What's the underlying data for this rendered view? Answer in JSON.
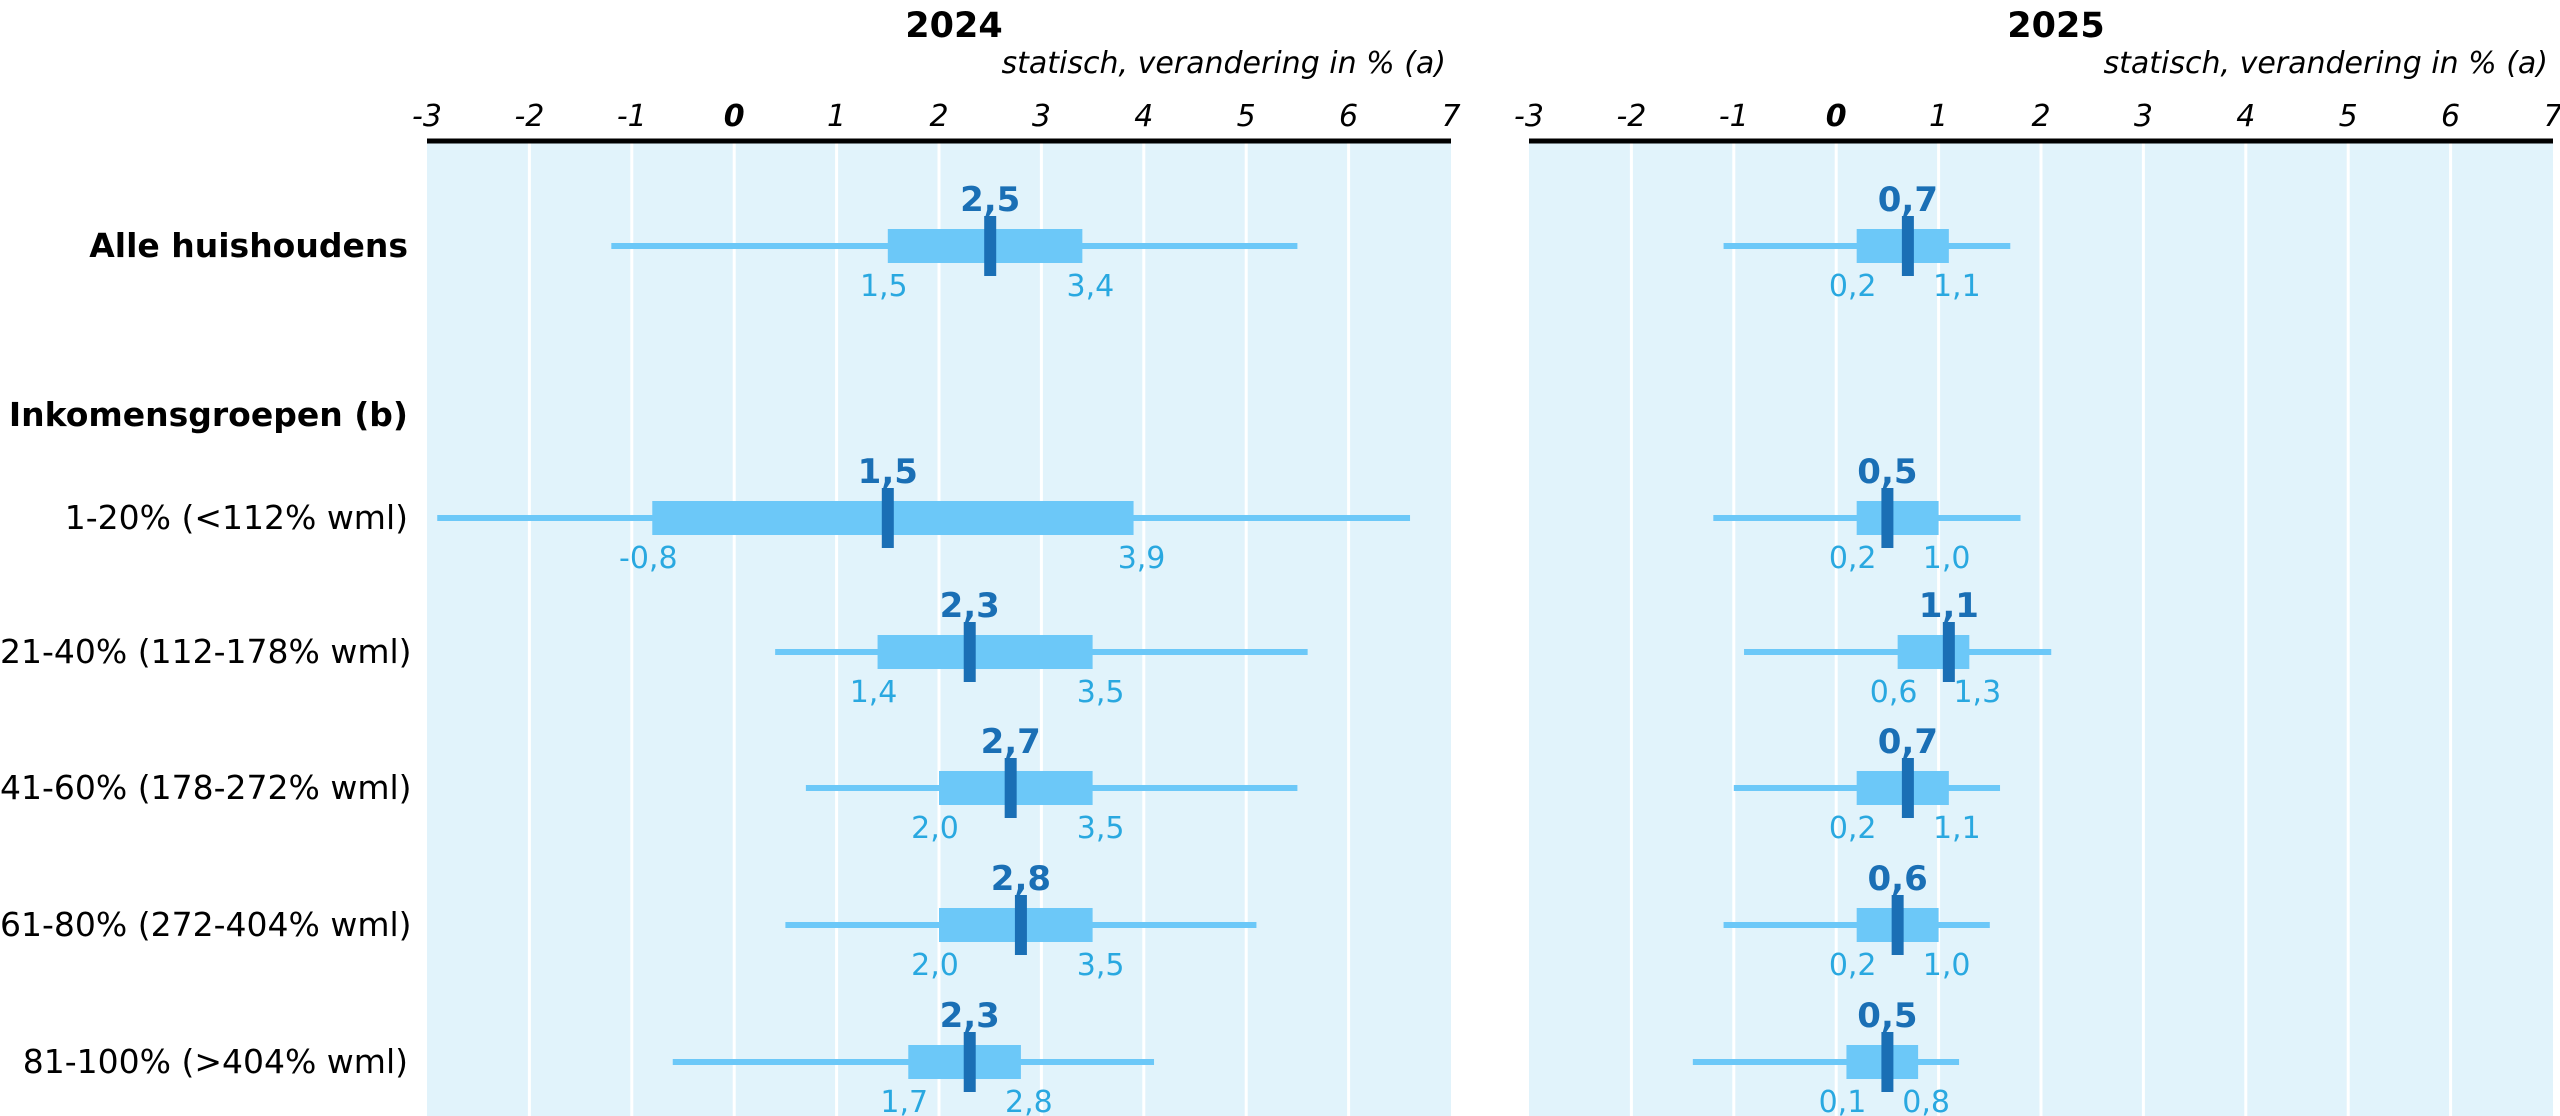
{
  "chart_data": {
    "type": "box",
    "row_labels": [
      {
        "label": "Alle huishoudens",
        "bold": true
      },
      {
        "label": "Inkomensgroepen (b)",
        "bold": true
      },
      {
        "label": "1-20% (<112% wml)",
        "bold": false
      },
      {
        "label": "21-40% (112-178% wml)",
        "bold": false
      },
      {
        "label": "41-60% (178-272% wml)",
        "bold": false
      },
      {
        "label": "61-80% (272-404% wml)",
        "bold": false
      },
      {
        "label": "81-100% (>404% wml)",
        "bold": false
      }
    ],
    "panels": [
      {
        "title": "2024",
        "subtitle": "statisch, verandering in % (a)",
        "xlim": [
          -3,
          7
        ],
        "ticks": [
          {
            "value": -3,
            "label": "-3"
          },
          {
            "value": -2,
            "label": "-2"
          },
          {
            "value": -1,
            "label": "-1"
          },
          {
            "value": 0,
            "label": "0"
          },
          {
            "value": 1,
            "label": "1"
          },
          {
            "value": 2,
            "label": "2"
          },
          {
            "value": 3,
            "label": "3"
          },
          {
            "value": 4,
            "label": "4"
          },
          {
            "value": 5,
            "label": "5"
          },
          {
            "value": 6,
            "label": "6"
          },
          {
            "value": 7,
            "label": "7"
          }
        ],
        "rows": [
          {
            "row": 0,
            "whisker_low": -1.2,
            "whisker_high": 5.5,
            "q1": 1.5,
            "q3": 3.4,
            "median": 2.5,
            "q1_label": "1,5",
            "q3_label": "3,4",
            "median_label": "2,5"
          },
          {
            "row": 2,
            "whisker_low": -2.9,
            "whisker_high": 6.6,
            "q1": -0.8,
            "q3": 3.9,
            "median": 1.5,
            "q1_label": "-0,8",
            "q3_label": "3,9",
            "median_label": "1,5"
          },
          {
            "row": 3,
            "whisker_low": 0.4,
            "whisker_high": 5.6,
            "q1": 1.4,
            "q3": 3.5,
            "median": 2.3,
            "q1_label": "1,4",
            "q3_label": "3,5",
            "median_label": "2,3"
          },
          {
            "row": 4,
            "whisker_low": 0.7,
            "whisker_high": 5.5,
            "q1": 2.0,
            "q3": 3.5,
            "median": 2.7,
            "q1_label": "2,0",
            "q3_label": "3,5",
            "median_label": "2,7"
          },
          {
            "row": 5,
            "whisker_low": 0.5,
            "whisker_high": 5.1,
            "q1": 2.0,
            "q3": 3.5,
            "median": 2.8,
            "q1_label": "2,0",
            "q3_label": "3,5",
            "median_label": "2,8"
          },
          {
            "row": 6,
            "whisker_low": -0.6,
            "whisker_high": 4.1,
            "q1": 1.7,
            "q3": 2.8,
            "median": 2.3,
            "q1_label": "1,7",
            "q3_label": "2,8",
            "median_label": "2,3"
          }
        ]
      },
      {
        "title": "2025",
        "subtitle": "statisch, verandering in % (a)",
        "xlim": [
          -3,
          7
        ],
        "ticks": [
          {
            "value": -3,
            "label": "-3"
          },
          {
            "value": -2,
            "label": "-2"
          },
          {
            "value": -1,
            "label": "-1"
          },
          {
            "value": 0,
            "label": "0"
          },
          {
            "value": 1,
            "label": "1"
          },
          {
            "value": 2,
            "label": "2"
          },
          {
            "value": 3,
            "label": "3"
          },
          {
            "value": 4,
            "label": "4"
          },
          {
            "value": 5,
            "label": "5"
          },
          {
            "value": 6,
            "label": "6"
          },
          {
            "value": 7,
            "label": "7"
          }
        ],
        "rows": [
          {
            "row": 0,
            "whisker_low": -1.1,
            "whisker_high": 1.7,
            "q1": 0.2,
            "q3": 1.1,
            "median": 0.7,
            "q1_label": "0,2",
            "q3_label": "1,1",
            "median_label": "0,7"
          },
          {
            "row": 2,
            "whisker_low": -1.2,
            "whisker_high": 1.8,
            "q1": 0.2,
            "q3": 1.0,
            "median": 0.5,
            "q1_label": "0,2",
            "q3_label": "1,0",
            "median_label": "0,5"
          },
          {
            "row": 3,
            "whisker_low": -0.9,
            "whisker_high": 2.1,
            "q1": 0.6,
            "q3": 1.3,
            "median": 1.1,
            "q1_label": "0,6",
            "q3_label": "1,3",
            "median_label": "1,1"
          },
          {
            "row": 4,
            "whisker_low": -1.0,
            "whisker_high": 1.6,
            "q1": 0.2,
            "q3": 1.1,
            "median": 0.7,
            "q1_label": "0,2",
            "q3_label": "1,1",
            "median_label": "0,7"
          },
          {
            "row": 5,
            "whisker_low": -1.1,
            "whisker_high": 1.5,
            "q1": 0.2,
            "q3": 1.0,
            "median": 0.6,
            "q1_label": "0,2",
            "q3_label": "1,0",
            "median_label": "0,6"
          },
          {
            "row": 6,
            "whisker_low": -1.4,
            "whisker_high": 1.2,
            "q1": 0.1,
            "q3": 0.8,
            "median": 0.5,
            "q1_label": "0,1",
            "q3_label": "0,8",
            "median_label": "0,5"
          }
        ]
      }
    ],
    "colors": {
      "panel_background": "#e1f3fb",
      "gridline": "#ffffff",
      "axis": "#000000",
      "whisker": "#6cc8f8",
      "box": "#6cc8f8",
      "median_marker": "#1a6fb5",
      "median_label": "#1a6fb5",
      "quartile_label": "#29a8e0"
    }
  }
}
